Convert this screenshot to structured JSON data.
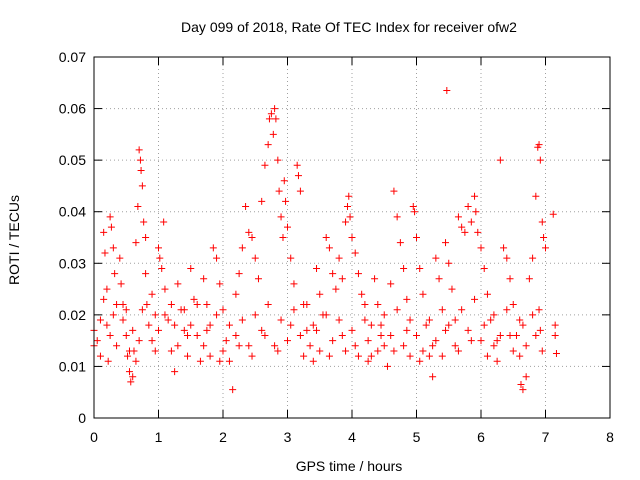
{
  "chart_data": {
    "type": "scatter",
    "title": "Day 099 of 2018, Rate Of TEC Index for receiver ofw2",
    "xlabel": "GPS time / hours",
    "ylabel": "ROTI / TECUs",
    "xlim": [
      0,
      8
    ],
    "ylim": [
      0,
      0.07
    ],
    "x_ticks": [
      0,
      1,
      2,
      3,
      4,
      5,
      6,
      7,
      8
    ],
    "x_tick_labels": [
      "0",
      "1",
      "2",
      "3",
      "4",
      "5",
      "6",
      "7",
      "8"
    ],
    "y_ticks": [
      0,
      0.01,
      0.02,
      0.03,
      0.04,
      0.05,
      0.06,
      0.07
    ],
    "y_tick_labels": [
      "0",
      "0.01",
      "0.02",
      "0.03",
      "0.04",
      "0.05",
      "0.06",
      "0.07"
    ],
    "grid": true,
    "marker": "plus",
    "series_color": "#ff0000",
    "grid_color": "#a0a0a0",
    "series": [
      {
        "name": "ROTI",
        "points": [
          [
            0.0,
            0.017
          ],
          [
            0.0,
            0.014
          ],
          [
            0.05,
            0.015
          ],
          [
            0.1,
            0.012
          ],
          [
            0.15,
            0.036
          ],
          [
            0.17,
            0.032
          ],
          [
            0.2,
            0.025
          ],
          [
            0.2,
            0.018
          ],
          [
            0.22,
            0.011
          ],
          [
            0.25,
            0.039
          ],
          [
            0.27,
            0.037
          ],
          [
            0.3,
            0.033
          ],
          [
            0.32,
            0.028
          ],
          [
            0.35,
            0.022
          ],
          [
            0.35,
            0.014
          ],
          [
            0.4,
            0.031
          ],
          [
            0.42,
            0.026
          ],
          [
            0.45,
            0.019
          ],
          [
            0.5,
            0.016
          ],
          [
            0.52,
            0.012
          ],
          [
            0.55,
            0.009
          ],
          [
            0.57,
            0.007
          ],
          [
            0.6,
            0.008
          ],
          [
            0.62,
            0.013
          ],
          [
            0.65,
            0.034
          ],
          [
            0.68,
            0.041
          ],
          [
            0.7,
            0.052
          ],
          [
            0.72,
            0.05
          ],
          [
            0.73,
            0.048
          ],
          [
            0.75,
            0.045
          ],
          [
            0.77,
            0.038
          ],
          [
            0.8,
            0.035
          ],
          [
            0.8,
            0.028
          ],
          [
            0.82,
            0.022
          ],
          [
            0.85,
            0.018
          ],
          [
            0.9,
            0.024
          ],
          [
            0.95,
            0.02
          ],
          [
            1.0,
            0.033
          ],
          [
            1.02,
            0.031
          ],
          [
            1.05,
            0.029
          ],
          [
            1.08,
            0.038
          ],
          [
            1.1,
            0.025
          ],
          [
            1.15,
            0.019
          ],
          [
            1.2,
            0.013
          ],
          [
            1.25,
            0.009
          ],
          [
            1.3,
            0.026
          ],
          [
            1.35,
            0.021
          ],
          [
            1.4,
            0.017
          ],
          [
            1.45,
            0.012
          ],
          [
            1.5,
            0.029
          ],
          [
            1.55,
            0.023
          ],
          [
            1.6,
            0.016
          ],
          [
            1.65,
            0.011
          ],
          [
            1.7,
            0.027
          ],
          [
            1.75,
            0.022
          ],
          [
            1.8,
            0.018
          ],
          [
            1.85,
            0.033
          ],
          [
            1.9,
            0.031
          ],
          [
            1.95,
            0.026
          ],
          [
            2.0,
            0.021
          ],
          [
            2.05,
            0.015
          ],
          [
            2.1,
            0.011
          ],
          [
            2.15,
            0.0055
          ],
          [
            2.2,
            0.024
          ],
          [
            2.25,
            0.028
          ],
          [
            2.3,
            0.033
          ],
          [
            2.35,
            0.041
          ],
          [
            2.4,
            0.036
          ],
          [
            2.45,
            0.035
          ],
          [
            2.5,
            0.031
          ],
          [
            2.55,
            0.027
          ],
          [
            2.6,
            0.042
          ],
          [
            2.65,
            0.049
          ],
          [
            2.7,
            0.053
          ],
          [
            2.72,
            0.058
          ],
          [
            2.75,
            0.059
          ],
          [
            2.78,
            0.055
          ],
          [
            2.8,
            0.06
          ],
          [
            2.82,
            0.058
          ],
          [
            2.85,
            0.05
          ],
          [
            2.87,
            0.044
          ],
          [
            2.9,
            0.039
          ],
          [
            2.93,
            0.035
          ],
          [
            2.95,
            0.046
          ],
          [
            2.97,
            0.042
          ],
          [
            3.0,
            0.037
          ],
          [
            3.05,
            0.031
          ],
          [
            3.1,
            0.026
          ],
          [
            3.15,
            0.049
          ],
          [
            3.17,
            0.047
          ],
          [
            3.2,
            0.044
          ],
          [
            3.25,
            0.022
          ],
          [
            3.3,
            0.017
          ],
          [
            3.35,
            0.014
          ],
          [
            3.4,
            0.011
          ],
          [
            3.45,
            0.029
          ],
          [
            3.5,
            0.024
          ],
          [
            3.55,
            0.02
          ],
          [
            3.6,
            0.035
          ],
          [
            3.65,
            0.033
          ],
          [
            3.7,
            0.028
          ],
          [
            3.75,
            0.025
          ],
          [
            3.8,
            0.031
          ],
          [
            3.85,
            0.027
          ],
          [
            3.9,
            0.038
          ],
          [
            3.93,
            0.041
          ],
          [
            3.95,
            0.043
          ],
          [
            3.97,
            0.039
          ],
          [
            4.0,
            0.035
          ],
          [
            4.05,
            0.032
          ],
          [
            4.1,
            0.028
          ],
          [
            4.15,
            0.024
          ],
          [
            4.2,
            0.019
          ],
          [
            4.25,
            0.015
          ],
          [
            4.3,
            0.012
          ],
          [
            4.35,
            0.027
          ],
          [
            4.4,
            0.022
          ],
          [
            4.45,
            0.018
          ],
          [
            4.5,
            0.014
          ],
          [
            4.55,
            0.01
          ],
          [
            4.6,
            0.026
          ],
          [
            4.65,
            0.044
          ],
          [
            4.7,
            0.039
          ],
          [
            4.75,
            0.034
          ],
          [
            4.8,
            0.029
          ],
          [
            4.85,
            0.023
          ],
          [
            4.9,
            0.019
          ],
          [
            4.95,
            0.041
          ],
          [
            4.97,
            0.04
          ],
          [
            5.0,
            0.035
          ],
          [
            5.05,
            0.029
          ],
          [
            5.1,
            0.024
          ],
          [
            5.15,
            0.018
          ],
          [
            5.2,
            0.012
          ],
          [
            5.25,
            0.008
          ],
          [
            5.3,
            0.031
          ],
          [
            5.35,
            0.027
          ],
          [
            5.4,
            0.021
          ],
          [
            5.45,
            0.034
          ],
          [
            5.47,
            0.0635
          ],
          [
            5.5,
            0.03
          ],
          [
            5.55,
            0.025
          ],
          [
            5.6,
            0.019
          ],
          [
            5.65,
            0.039
          ],
          [
            5.7,
            0.037
          ],
          [
            5.75,
            0.036
          ],
          [
            5.8,
            0.041
          ],
          [
            5.85,
            0.038
          ],
          [
            5.9,
            0.043
          ],
          [
            5.92,
            0.04
          ],
          [
            5.95,
            0.036
          ],
          [
            6.0,
            0.033
          ],
          [
            6.05,
            0.029
          ],
          [
            6.1,
            0.024
          ],
          [
            6.15,
            0.019
          ],
          [
            6.2,
            0.014
          ],
          [
            6.25,
            0.011
          ],
          [
            6.3,
            0.05
          ],
          [
            6.35,
            0.033
          ],
          [
            6.4,
            0.031
          ],
          [
            6.45,
            0.027
          ],
          [
            6.5,
            0.022
          ],
          [
            6.55,
            0.016
          ],
          [
            6.6,
            0.012
          ],
          [
            6.62,
            0.0065
          ],
          [
            6.65,
            0.0055
          ],
          [
            6.7,
            0.008
          ],
          [
            6.75,
            0.027
          ],
          [
            6.8,
            0.031
          ],
          [
            6.85,
            0.043
          ],
          [
            6.88,
            0.0525
          ],
          [
            6.9,
            0.053
          ],
          [
            6.92,
            0.05
          ],
          [
            6.95,
            0.038
          ],
          [
            6.97,
            0.035
          ],
          [
            7.0,
            0.033
          ],
          [
            6.9,
            0.021
          ],
          [
            6.92,
            0.017
          ],
          [
            6.95,
            0.013
          ],
          [
            7.12,
            0.0395
          ],
          [
            7.15,
            0.018
          ],
          [
            7.15,
            0.016
          ],
          [
            7.17,
            0.0125
          ],
          [
            0.1,
            0.019
          ],
          [
            0.15,
            0.023
          ],
          [
            0.25,
            0.016
          ],
          [
            0.3,
            0.02
          ],
          [
            0.45,
            0.022
          ],
          [
            0.5,
            0.021
          ],
          [
            0.6,
            0.017
          ],
          [
            0.7,
            0.015
          ],
          [
            0.75,
            0.021
          ],
          [
            0.9,
            0.015
          ],
          [
            1.0,
            0.017
          ],
          [
            1.1,
            0.02
          ],
          [
            1.2,
            0.022
          ],
          [
            1.3,
            0.014
          ],
          [
            1.4,
            0.021
          ],
          [
            1.5,
            0.018
          ],
          [
            1.6,
            0.022
          ],
          [
            1.7,
            0.014
          ],
          [
            1.8,
            0.012
          ],
          [
            1.9,
            0.02
          ],
          [
            2.0,
            0.013
          ],
          [
            2.1,
            0.018
          ],
          [
            2.2,
            0.016
          ],
          [
            2.3,
            0.019
          ],
          [
            2.4,
            0.014
          ],
          [
            2.5,
            0.02
          ],
          [
            2.6,
            0.017
          ],
          [
            2.7,
            0.022
          ],
          [
            2.8,
            0.014
          ],
          [
            2.9,
            0.019
          ],
          [
            3.0,
            0.015
          ],
          [
            3.1,
            0.021
          ],
          [
            3.2,
            0.016
          ],
          [
            3.3,
            0.022
          ],
          [
            3.4,
            0.018
          ],
          [
            3.5,
            0.013
          ],
          [
            3.6,
            0.02
          ],
          [
            3.7,
            0.015
          ],
          [
            3.8,
            0.019
          ],
          [
            3.9,
            0.013
          ],
          [
            4.0,
            0.017
          ],
          [
            4.1,
            0.012
          ],
          [
            4.2,
            0.022
          ],
          [
            4.3,
            0.018
          ],
          [
            4.4,
            0.013
          ],
          [
            4.5,
            0.02
          ],
          [
            4.6,
            0.016
          ],
          [
            4.7,
            0.021
          ],
          [
            4.8,
            0.014
          ],
          [
            4.9,
            0.012
          ],
          [
            5.0,
            0.016
          ],
          [
            5.1,
            0.013
          ],
          [
            5.2,
            0.019
          ],
          [
            5.3,
            0.015
          ],
          [
            5.4,
            0.012
          ],
          [
            5.5,
            0.018
          ],
          [
            5.6,
            0.014
          ],
          [
            5.7,
            0.021
          ],
          [
            5.8,
            0.017
          ],
          [
            5.9,
            0.023
          ],
          [
            6.0,
            0.015
          ],
          [
            6.1,
            0.012
          ],
          [
            6.2,
            0.02
          ],
          [
            6.3,
            0.016
          ],
          [
            6.4,
            0.021
          ],
          [
            6.5,
            0.013
          ],
          [
            6.6,
            0.019
          ],
          [
            6.7,
            0.014
          ],
          [
            6.8,
            0.02
          ],
          [
            6.85,
            0.016
          ],
          [
            0.55,
            0.013
          ],
          [
            0.65,
            0.011
          ],
          [
            0.95,
            0.013
          ],
          [
            1.25,
            0.018
          ],
          [
            1.45,
            0.016
          ],
          [
            1.75,
            0.017
          ],
          [
            1.95,
            0.011
          ],
          [
            2.25,
            0.014
          ],
          [
            2.45,
            0.012
          ],
          [
            2.65,
            0.016
          ],
          [
            2.85,
            0.013
          ],
          [
            3.05,
            0.018
          ],
          [
            3.25,
            0.012
          ],
          [
            3.45,
            0.017
          ],
          [
            3.65,
            0.012
          ],
          [
            3.85,
            0.016
          ],
          [
            4.05,
            0.014
          ],
          [
            4.25,
            0.011
          ],
          [
            4.45,
            0.016
          ],
          [
            4.65,
            0.013
          ],
          [
            4.85,
            0.017
          ],
          [
            5.05,
            0.011
          ],
          [
            5.25,
            0.014
          ],
          [
            5.45,
            0.017
          ],
          [
            5.65,
            0.013
          ],
          [
            5.85,
            0.015
          ],
          [
            6.05,
            0.018
          ],
          [
            6.25,
            0.015
          ],
          [
            6.45,
            0.016
          ],
          [
            6.65,
            0.018
          ]
        ]
      }
    ]
  }
}
